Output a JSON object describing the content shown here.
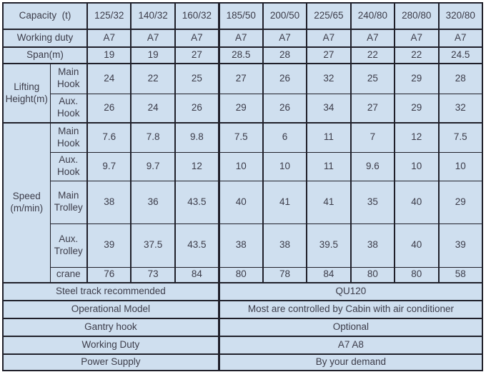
{
  "colors": {
    "cell_background": "#cfdfef",
    "border": "#20202a",
    "text": "#3c3c49"
  },
  "table": {
    "header": {
      "label": "Capacity  (t)",
      "values": [
        "125/32",
        "140/32",
        "160/32",
        "185/50",
        "200/50",
        "225/65",
        "240/80",
        "280/80",
        "320/80"
      ]
    },
    "working_duty": {
      "label": "Working duty",
      "values": [
        "A7",
        "A7",
        "A7",
        "A7",
        "A7",
        "A7",
        "A7",
        "A7",
        "A7"
      ]
    },
    "span": {
      "label": "Span(m)",
      "values": [
        "19",
        "19",
        "27",
        "28.5",
        "28",
        "27",
        "22",
        "22",
        "24.5"
      ]
    },
    "lifting_height": {
      "label": "Lifting Height(m)",
      "rows": [
        {
          "sub": "Main Hook",
          "values": [
            "24",
            "22",
            "25",
            "27",
            "26",
            "32",
            "25",
            "29",
            "28"
          ]
        },
        {
          "sub": "Aux. Hook",
          "values": [
            "26",
            "24",
            "26",
            "29",
            "26",
            "34",
            "27",
            "29",
            "32"
          ]
        }
      ]
    },
    "speed": {
      "label": "Speed (m/min)",
      "rows": [
        {
          "sub": "Main Hook",
          "values": [
            "7.6",
            "7.8",
            "9.8",
            "7.5",
            "6",
            "11",
            "7",
            "12",
            "7.5"
          ]
        },
        {
          "sub": "Aux. Hook",
          "values": [
            "9.7",
            "9.7",
            "12",
            "10",
            "10",
            "11",
            "9.6",
            "10",
            "10"
          ]
        },
        {
          "sub": "Main Trolley",
          "values": [
            "38",
            "36",
            "43.5",
            "40",
            "41",
            "41",
            "35",
            "40",
            "29"
          ]
        },
        {
          "sub": "Aux. Trolley",
          "values": [
            "39",
            "37.5",
            "43.5",
            "38",
            "38",
            "39.5",
            "38",
            "40",
            "39"
          ]
        },
        {
          "sub": "crane",
          "values": [
            "76",
            "73",
            "84",
            "80",
            "78",
            "84",
            "80",
            "80",
            "58"
          ]
        }
      ]
    },
    "footer_rows": [
      {
        "label": "Steel track recommended",
        "value": "QU120"
      },
      {
        "label": "Operational Model",
        "value": "Most are controlled by Cabin with air conditioner"
      },
      {
        "label": "Gantry hook",
        "value": "Optional"
      },
      {
        "label": "Working Duty",
        "value": "A7 A8"
      },
      {
        "label": "Power Supply",
        "value": "By your demand"
      }
    ]
  }
}
